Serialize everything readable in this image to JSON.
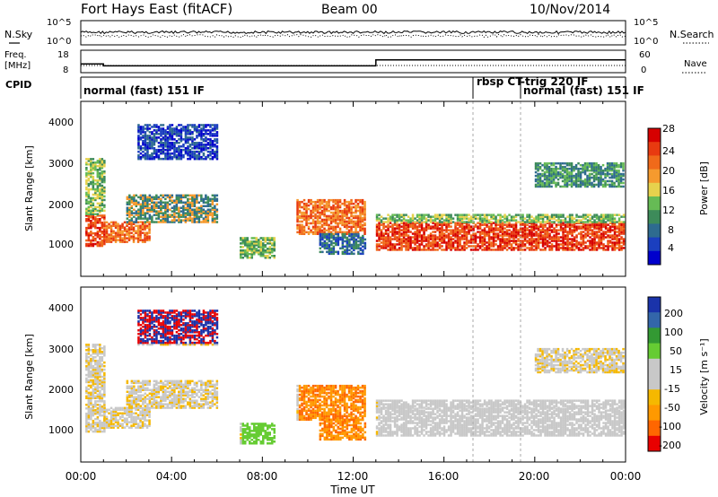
{
  "header": {
    "station": "Fort Hays East (fitACF)",
    "beam": "Beam 00",
    "date": "10/Nov/2014"
  },
  "left_labels": {
    "nsky": "N.Sky",
    "freq_line1": "Freq.",
    "freq_line2": "[MHz]",
    "cpid": "CPID"
  },
  "right_labels": {
    "nsearch": "N.Search",
    "nave": "Nave"
  },
  "colors": {
    "power": [
      "#0000cc",
      "#1b3fbf",
      "#2e6b8f",
      "#3d8b5a",
      "#66bb55",
      "#e6d24d",
      "#f59a2e",
      "#f06a1a",
      "#e83a10",
      "#d60000"
    ],
    "velocity": [
      "#e80000",
      "#ff6600",
      "#ff9900",
      "#f5b800",
      "#c8c8c8",
      "#c8c8c8",
      "#66cc33",
      "#339933",
      "#3366aa",
      "#1a33aa"
    ]
  },
  "chart_data": [
    {
      "type": "line",
      "name": "noise",
      "tick_labels": [
        "10^5",
        "10^0"
      ],
      "right_tick_labels": [
        "10^5",
        "10^0"
      ]
    },
    {
      "type": "line",
      "name": "frequency",
      "left_ticks": [
        "18",
        "8"
      ],
      "right_ticks": [
        "60",
        "0"
      ],
      "segments": [
        {
          "from": 0,
          "to": 1,
          "freq": 12
        },
        {
          "from": 1,
          "to": 13,
          "freq": 11
        },
        {
          "from": 13,
          "to": 24,
          "freq": 14
        }
      ]
    },
    {
      "type": "table",
      "name": "cpid",
      "entries": [
        "normal (fast) 151 IF",
        "rbsp CT",
        "-trig 220 IF",
        "normal (fast) 151 IF"
      ]
    },
    {
      "type": "heatmap",
      "name": "power",
      "ylabel": "Slant Range [km]",
      "yticks": [
        "4000",
        "3000",
        "2000",
        "1000"
      ],
      "colorbar_label": "Power [dB]",
      "colorbar_ticks": [
        "28",
        "24",
        "20",
        "16",
        "12",
        "8",
        "4"
      ]
    },
    {
      "type": "heatmap",
      "name": "velocity",
      "ylabel": "Slant Range [km]",
      "yticks": [
        "4000",
        "3000",
        "2000",
        "1000"
      ],
      "colorbar_label": "Velocity [m s⁻¹]",
      "colorbar_ticks": [
        "200",
        "100",
        "50",
        "15",
        "-15",
        "-50",
        "-100",
        "-200"
      ]
    }
  ],
  "x_axis": {
    "ticks": [
      "00:00",
      "04:00",
      "08:00",
      "12:00",
      "16:00",
      "20:00",
      "00:00"
    ],
    "label": "Time UT"
  }
}
